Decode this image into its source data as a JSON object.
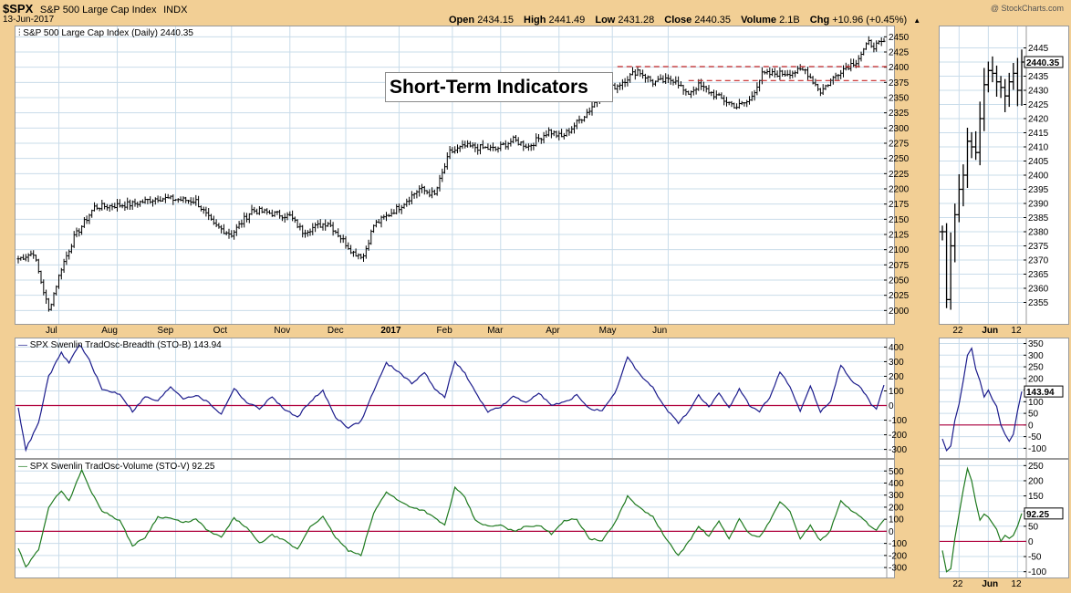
{
  "header": {
    "symbol": "$SPX",
    "name": "S&P 500 Large Cap Index",
    "exchange": "INDX",
    "date": "13-Jun-2017",
    "watermark": "@ StockCharts.com",
    "quote": {
      "open_label": "Open",
      "open": "2434.15",
      "high_label": "High",
      "high": "2441.49",
      "low_label": "Low",
      "low": "2431.28",
      "close_label": "Close",
      "close": "2440.35",
      "volume_label": "Volume",
      "volume": "2.1B",
      "chg_label": "Chg",
      "chg": "+10.96 (+0.45%)"
    }
  },
  "annotation": "Short-Term Indicators",
  "colors": {
    "price_bars": "#000000",
    "breadth_line": "#1c1c8c",
    "volume_line": "#1f7a1f",
    "zero_line": "#b0003c",
    "resistance": "#c82828",
    "grid": "#c9dcea"
  },
  "chart_data": [
    {
      "type": "ohlc",
      "label": "S&P 500 Large Cap Index (Daily) 2440.35",
      "last_value": "2440.35",
      "ylim": [
        1990,
        2455
      ],
      "y_ticks": [
        2000,
        2025,
        2050,
        2075,
        2100,
        2125,
        2150,
        2175,
        2200,
        2225,
        2250,
        2275,
        2300,
        2325,
        2350,
        2375,
        2400,
        2425,
        2450
      ],
      "x_ticks": [
        "Jul",
        "Aug",
        "Sep",
        "Oct",
        "Nov",
        "Dec",
        "2017",
        "Feb",
        "Mar",
        "Apr",
        "May",
        "Jun"
      ],
      "close_anchors": [
        [
          0,
          2085
        ],
        [
          6,
          2095
        ],
        [
          12,
          2000
        ],
        [
          17,
          2070
        ],
        [
          22,
          2120
        ],
        [
          30,
          2170
        ],
        [
          45,
          2175
        ],
        [
          55,
          2185
        ],
        [
          70,
          2180
        ],
        [
          77,
          2140
        ],
        [
          84,
          2125
        ],
        [
          92,
          2165
        ],
        [
          107,
          2155
        ],
        [
          112,
          2130
        ],
        [
          122,
          2145
        ],
        [
          132,
          2095
        ],
        [
          136,
          2090
        ],
        [
          140,
          2140
        ],
        [
          150,
          2170
        ],
        [
          158,
          2200
        ],
        [
          164,
          2190
        ],
        [
          170,
          2260
        ],
        [
          176,
          2270
        ],
        [
          188,
          2265
        ],
        [
          195,
          2280
        ],
        [
          201,
          2270
        ],
        [
          209,
          2295
        ],
        [
          214,
          2285
        ],
        [
          218,
          2300
        ],
        [
          225,
          2330
        ],
        [
          230,
          2360
        ],
        [
          236,
          2370
        ],
        [
          244,
          2395
        ],
        [
          250,
          2375
        ],
        [
          259,
          2380
        ],
        [
          263,
          2355
        ],
        [
          268,
          2370
        ],
        [
          276,
          2350
        ],
        [
          283,
          2335
        ],
        [
          288,
          2345
        ],
        [
          293,
          2388
        ],
        [
          302,
          2390
        ],
        [
          310,
          2395
        ],
        [
          316,
          2360
        ],
        [
          324,
          2395
        ],
        [
          330,
          2410
        ],
        [
          335,
          2440
        ],
        [
          337,
          2435
        ],
        [
          341,
          2440
        ]
      ],
      "resistance_lines": [
        {
          "value": 2401,
          "from_index": 236
        },
        {
          "value": 2378,
          "from_index": 264
        }
      ],
      "zoom": {
        "ylim": [
          2350,
          2450
        ],
        "y_ticks": [
          2355,
          2360,
          2365,
          2370,
          2375,
          2380,
          2385,
          2390,
          2395,
          2400,
          2405,
          2410,
          2415,
          2420,
          2425,
          2430,
          2435,
          2440,
          2445
        ],
        "x_ticks": [
          "22",
          "Jun",
          "12"
        ],
        "last_value": "2440.35",
        "closes": [
          2380,
          2356,
          2375,
          2386,
          2395,
          2400,
          2412,
          2410,
          2408,
          2420,
          2432,
          2437,
          2436,
          2433,
          2431,
          2428,
          2433,
          2436,
          2430,
          2440
        ]
      }
    },
    {
      "type": "line",
      "label": "SPX Swenlin TradOsc-Breadth (STO-B) 143.94",
      "last_value": "143.94",
      "ylim": [
        -340,
        440
      ],
      "y_ticks": [
        -300,
        -200,
        -100,
        0,
        100,
        200,
        300,
        400
      ],
      "zero": 0,
      "anchors": [
        [
          0,
          -20
        ],
        [
          3,
          -300
        ],
        [
          8,
          -120
        ],
        [
          12,
          200
        ],
        [
          17,
          360
        ],
        [
          20,
          290
        ],
        [
          24,
          420
        ],
        [
          28,
          310
        ],
        [
          33,
          110
        ],
        [
          40,
          80
        ],
        [
          45,
          -40
        ],
        [
          50,
          60
        ],
        [
          55,
          30
        ],
        [
          60,
          130
        ],
        [
          65,
          50
        ],
        [
          70,
          70
        ],
        [
          75,
          20
        ],
        [
          80,
          -60
        ],
        [
          85,
          120
        ],
        [
          90,
          20
        ],
        [
          95,
          -20
        ],
        [
          100,
          60
        ],
        [
          105,
          -30
        ],
        [
          110,
          -80
        ],
        [
          115,
          30
        ],
        [
          120,
          100
        ],
        [
          125,
          -80
        ],
        [
          130,
          -150
        ],
        [
          135,
          -110
        ],
        [
          140,
          100
        ],
        [
          145,
          290
        ],
        [
          150,
          230
        ],
        [
          155,
          150
        ],
        [
          160,
          230
        ],
        [
          164,
          110
        ],
        [
          168,
          60
        ],
        [
          172,
          300
        ],
        [
          176,
          220
        ],
        [
          180,
          90
        ],
        [
          185,
          -40
        ],
        [
          190,
          -10
        ],
        [
          195,
          60
        ],
        [
          200,
          20
        ],
        [
          205,
          90
        ],
        [
          210,
          0
        ],
        [
          215,
          20
        ],
        [
          220,
          70
        ],
        [
          225,
          -20
        ],
        [
          230,
          -40
        ],
        [
          235,
          80
        ],
        [
          240,
          330
        ],
        [
          245,
          210
        ],
        [
          250,
          120
        ],
        [
          255,
          -20
        ],
        [
          260,
          -120
        ],
        [
          264,
          -40
        ],
        [
          268,
          70
        ],
        [
          272,
          -10
        ],
        [
          276,
          80
        ],
        [
          280,
          -20
        ],
        [
          284,
          120
        ],
        [
          288,
          0
        ],
        [
          292,
          -40
        ],
        [
          296,
          60
        ],
        [
          300,
          230
        ],
        [
          304,
          130
        ],
        [
          308,
          -40
        ],
        [
          312,
          130
        ],
        [
          316,
          -40
        ],
        [
          320,
          30
        ],
        [
          324,
          280
        ],
        [
          328,
          170
        ],
        [
          332,
          120
        ],
        [
          336,
          10
        ],
        [
          338,
          -30
        ],
        [
          341,
          144
        ]
      ],
      "zoom": {
        "ylim": [
          -130,
          360
        ],
        "y_ticks": [
          -100,
          -50,
          0,
          50,
          100,
          150,
          200,
          250,
          300,
          350
        ],
        "x_ticks": [
          "22",
          "Jun",
          "12"
        ],
        "last_value": "143.94",
        "values": [
          -60,
          -110,
          -90,
          20,
          90,
          190,
          300,
          330,
          240,
          190,
          120,
          150,
          110,
          80,
          0,
          -40,
          -70,
          -40,
          60,
          144
        ]
      }
    },
    {
      "type": "line",
      "label": "SPX Swenlin TradOsc-Volume (STO-V) 92.25",
      "last_value": "92.25",
      "ylim": [
        -360,
        570
      ],
      "y_ticks": [
        -300,
        -200,
        -100,
        0,
        100,
        200,
        300,
        400,
        500
      ],
      "zero": 0,
      "anchors": [
        [
          0,
          -140
        ],
        [
          3,
          -300
        ],
        [
          8,
          -150
        ],
        [
          12,
          200
        ],
        [
          17,
          340
        ],
        [
          20,
          250
        ],
        [
          25,
          510
        ],
        [
          28,
          360
        ],
        [
          33,
          170
        ],
        [
          40,
          90
        ],
        [
          45,
          -120
        ],
        [
          50,
          -50
        ],
        [
          55,
          120
        ],
        [
          60,
          110
        ],
        [
          65,
          70
        ],
        [
          70,
          100
        ],
        [
          75,
          0
        ],
        [
          80,
          -50
        ],
        [
          85,
          110
        ],
        [
          90,
          30
        ],
        [
          95,
          -100
        ],
        [
          100,
          -30
        ],
        [
          105,
          -80
        ],
        [
          110,
          -150
        ],
        [
          115,
          40
        ],
        [
          120,
          120
        ],
        [
          125,
          -50
        ],
        [
          130,
          -160
        ],
        [
          135,
          -200
        ],
        [
          140,
          150
        ],
        [
          145,
          330
        ],
        [
          150,
          250
        ],
        [
          155,
          200
        ],
        [
          160,
          170
        ],
        [
          164,
          110
        ],
        [
          168,
          50
        ],
        [
          172,
          360
        ],
        [
          176,
          280
        ],
        [
          180,
          90
        ],
        [
          185,
          40
        ],
        [
          190,
          50
        ],
        [
          195,
          0
        ],
        [
          200,
          40
        ],
        [
          205,
          50
        ],
        [
          210,
          -20
        ],
        [
          215,
          90
        ],
        [
          220,
          100
        ],
        [
          225,
          -60
        ],
        [
          230,
          -80
        ],
        [
          235,
          70
        ],
        [
          240,
          290
        ],
        [
          245,
          190
        ],
        [
          250,
          120
        ],
        [
          255,
          -60
        ],
        [
          260,
          -200
        ],
        [
          264,
          -90
        ],
        [
          268,
          40
        ],
        [
          272,
          -40
        ],
        [
          276,
          80
        ],
        [
          280,
          -60
        ],
        [
          284,
          100
        ],
        [
          288,
          -20
        ],
        [
          292,
          -50
        ],
        [
          296,
          80
        ],
        [
          300,
          250
        ],
        [
          304,
          160
        ],
        [
          308,
          -60
        ],
        [
          312,
          50
        ],
        [
          316,
          -80
        ],
        [
          320,
          10
        ],
        [
          324,
          260
        ],
        [
          328,
          170
        ],
        [
          332,
          120
        ],
        [
          336,
          30
        ],
        [
          338,
          10
        ],
        [
          341,
          92
        ]
      ],
      "zoom": {
        "ylim": [
          -110,
          260
        ],
        "y_ticks": [
          -100,
          -50,
          0,
          50,
          100,
          150,
          200,
          250
        ],
        "x_ticks": [
          "22",
          "Jun",
          "12"
        ],
        "last_value": "92.25",
        "values": [
          -30,
          -100,
          -90,
          10,
          90,
          170,
          240,
          200,
          130,
          70,
          90,
          80,
          60,
          40,
          0,
          20,
          10,
          20,
          50,
          92
        ]
      }
    }
  ]
}
